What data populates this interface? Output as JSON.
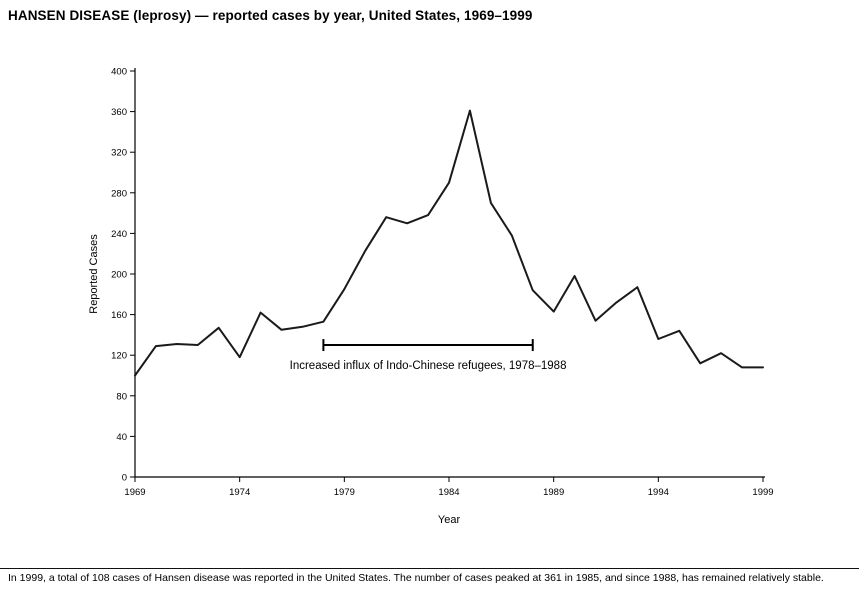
{
  "page": {
    "title": "HANSEN DISEASE (leprosy) — reported cases by year, United States, 1969–1999",
    "footnote": "In 1999, a total of 108 cases of Hansen disease was reported in the United States. The number of cases peaked at 361 in 1985, and since 1988, has remained relatively stable."
  },
  "chart_data": {
    "type": "line",
    "title": "HANSEN DISEASE (leprosy) — reported cases by year, United States, 1969–1999",
    "xlabel": "Year",
    "ylabel": "Reported Cases",
    "x": [
      1969,
      1970,
      1971,
      1972,
      1973,
      1974,
      1975,
      1976,
      1977,
      1978,
      1979,
      1980,
      1981,
      1982,
      1983,
      1984,
      1985,
      1986,
      1987,
      1988,
      1989,
      1990,
      1991,
      1992,
      1993,
      1994,
      1995,
      1996,
      1997,
      1998,
      1999
    ],
    "values": [
      100,
      129,
      131,
      130,
      147,
      118,
      162,
      145,
      148,
      153,
      185,
      223,
      256,
      250,
      258,
      290,
      361,
      270,
      238,
      184,
      163,
      198,
      154,
      172,
      187,
      136,
      144,
      112,
      122,
      108,
      108
    ],
    "xlim": [
      1969,
      1999
    ],
    "ylim": [
      0,
      400
    ],
    "yticks": [
      0,
      40,
      80,
      120,
      160,
      200,
      240,
      280,
      320,
      360,
      400
    ],
    "xticks": [
      1969,
      1974,
      1979,
      1984,
      1989,
      1994,
      1999
    ],
    "grid": false,
    "legend": "none",
    "line_color": "#1a1a1a",
    "annotation": {
      "text": "Increased influx of Indo-Chinese refugees, 1978–1988",
      "span": [
        1978,
        1988
      ],
      "y_value": 130
    }
  }
}
